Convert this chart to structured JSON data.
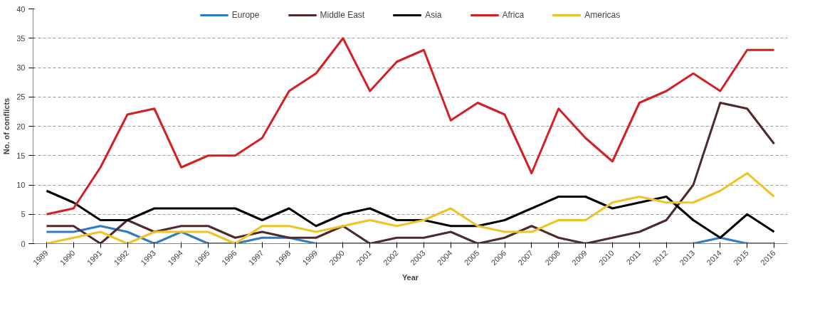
{
  "chart_data": {
    "type": "line",
    "xlabel": "Year",
    "ylabel": "No. of conflicts",
    "categories": [
      "1989",
      "1990",
      "1991",
      "1992",
      "1993",
      "1994",
      "1995",
      "1996",
      "1997",
      "1998",
      "1999",
      "2000",
      "2001",
      "2002",
      "2003",
      "2004",
      "2005",
      "2006",
      "2007",
      "2008",
      "2009",
      "2010",
      "2011",
      "2012",
      "2013",
      "2014",
      "2015",
      "2016"
    ],
    "series": [
      {
        "name": "Europe",
        "color": "#2e7bbf",
        "values": [
          2,
          2,
          3,
          2,
          0,
          2,
          0,
          0,
          1,
          1,
          0,
          0,
          0,
          0,
          0,
          0,
          0,
          0,
          0,
          0,
          0,
          0,
          0,
          0,
          0,
          1,
          0,
          0
        ]
      },
      {
        "name": "Middle East",
        "color": "#4e2a2a",
        "values": [
          3,
          3,
          0,
          4,
          2,
          3,
          3,
          1,
          2,
          1,
          1,
          3,
          0,
          1,
          1,
          2,
          0,
          1,
          3,
          1,
          0,
          1,
          2,
          4,
          10,
          24,
          23,
          17
        ]
      },
      {
        "name": "Asia",
        "color": "#000000",
        "values": [
          9,
          7,
          4,
          4,
          6,
          6,
          6,
          6,
          4,
          6,
          3,
          5,
          6,
          4,
          4,
          3,
          3,
          4,
          6,
          8,
          8,
          6,
          7,
          8,
          4,
          1,
          5,
          2
        ]
      },
      {
        "name": "Africa",
        "color": "#d42022",
        "values": [
          5,
          6,
          13,
          22,
          23,
          13,
          15,
          15,
          18,
          26,
          29,
          35,
          26,
          31,
          33,
          21,
          24,
          22,
          12,
          23,
          18,
          14,
          24,
          26,
          29,
          26,
          33,
          33
        ]
      },
      {
        "name": "Americas",
        "color": "#efc325",
        "values": [
          0,
          1,
          2,
          0,
          2,
          2,
          2,
          0,
          3,
          3,
          2,
          3,
          4,
          3,
          4,
          6,
          3,
          2,
          2,
          4,
          4,
          7,
          8,
          7,
          7,
          9,
          12,
          8
        ]
      }
    ],
    "ylim": [
      0,
      40
    ],
    "yticks": [
      0,
      5,
      10,
      15,
      20,
      25,
      30,
      35,
      40
    ],
    "grid": "y",
    "legend": "top",
    "line_style": "solid",
    "marker": "none"
  }
}
